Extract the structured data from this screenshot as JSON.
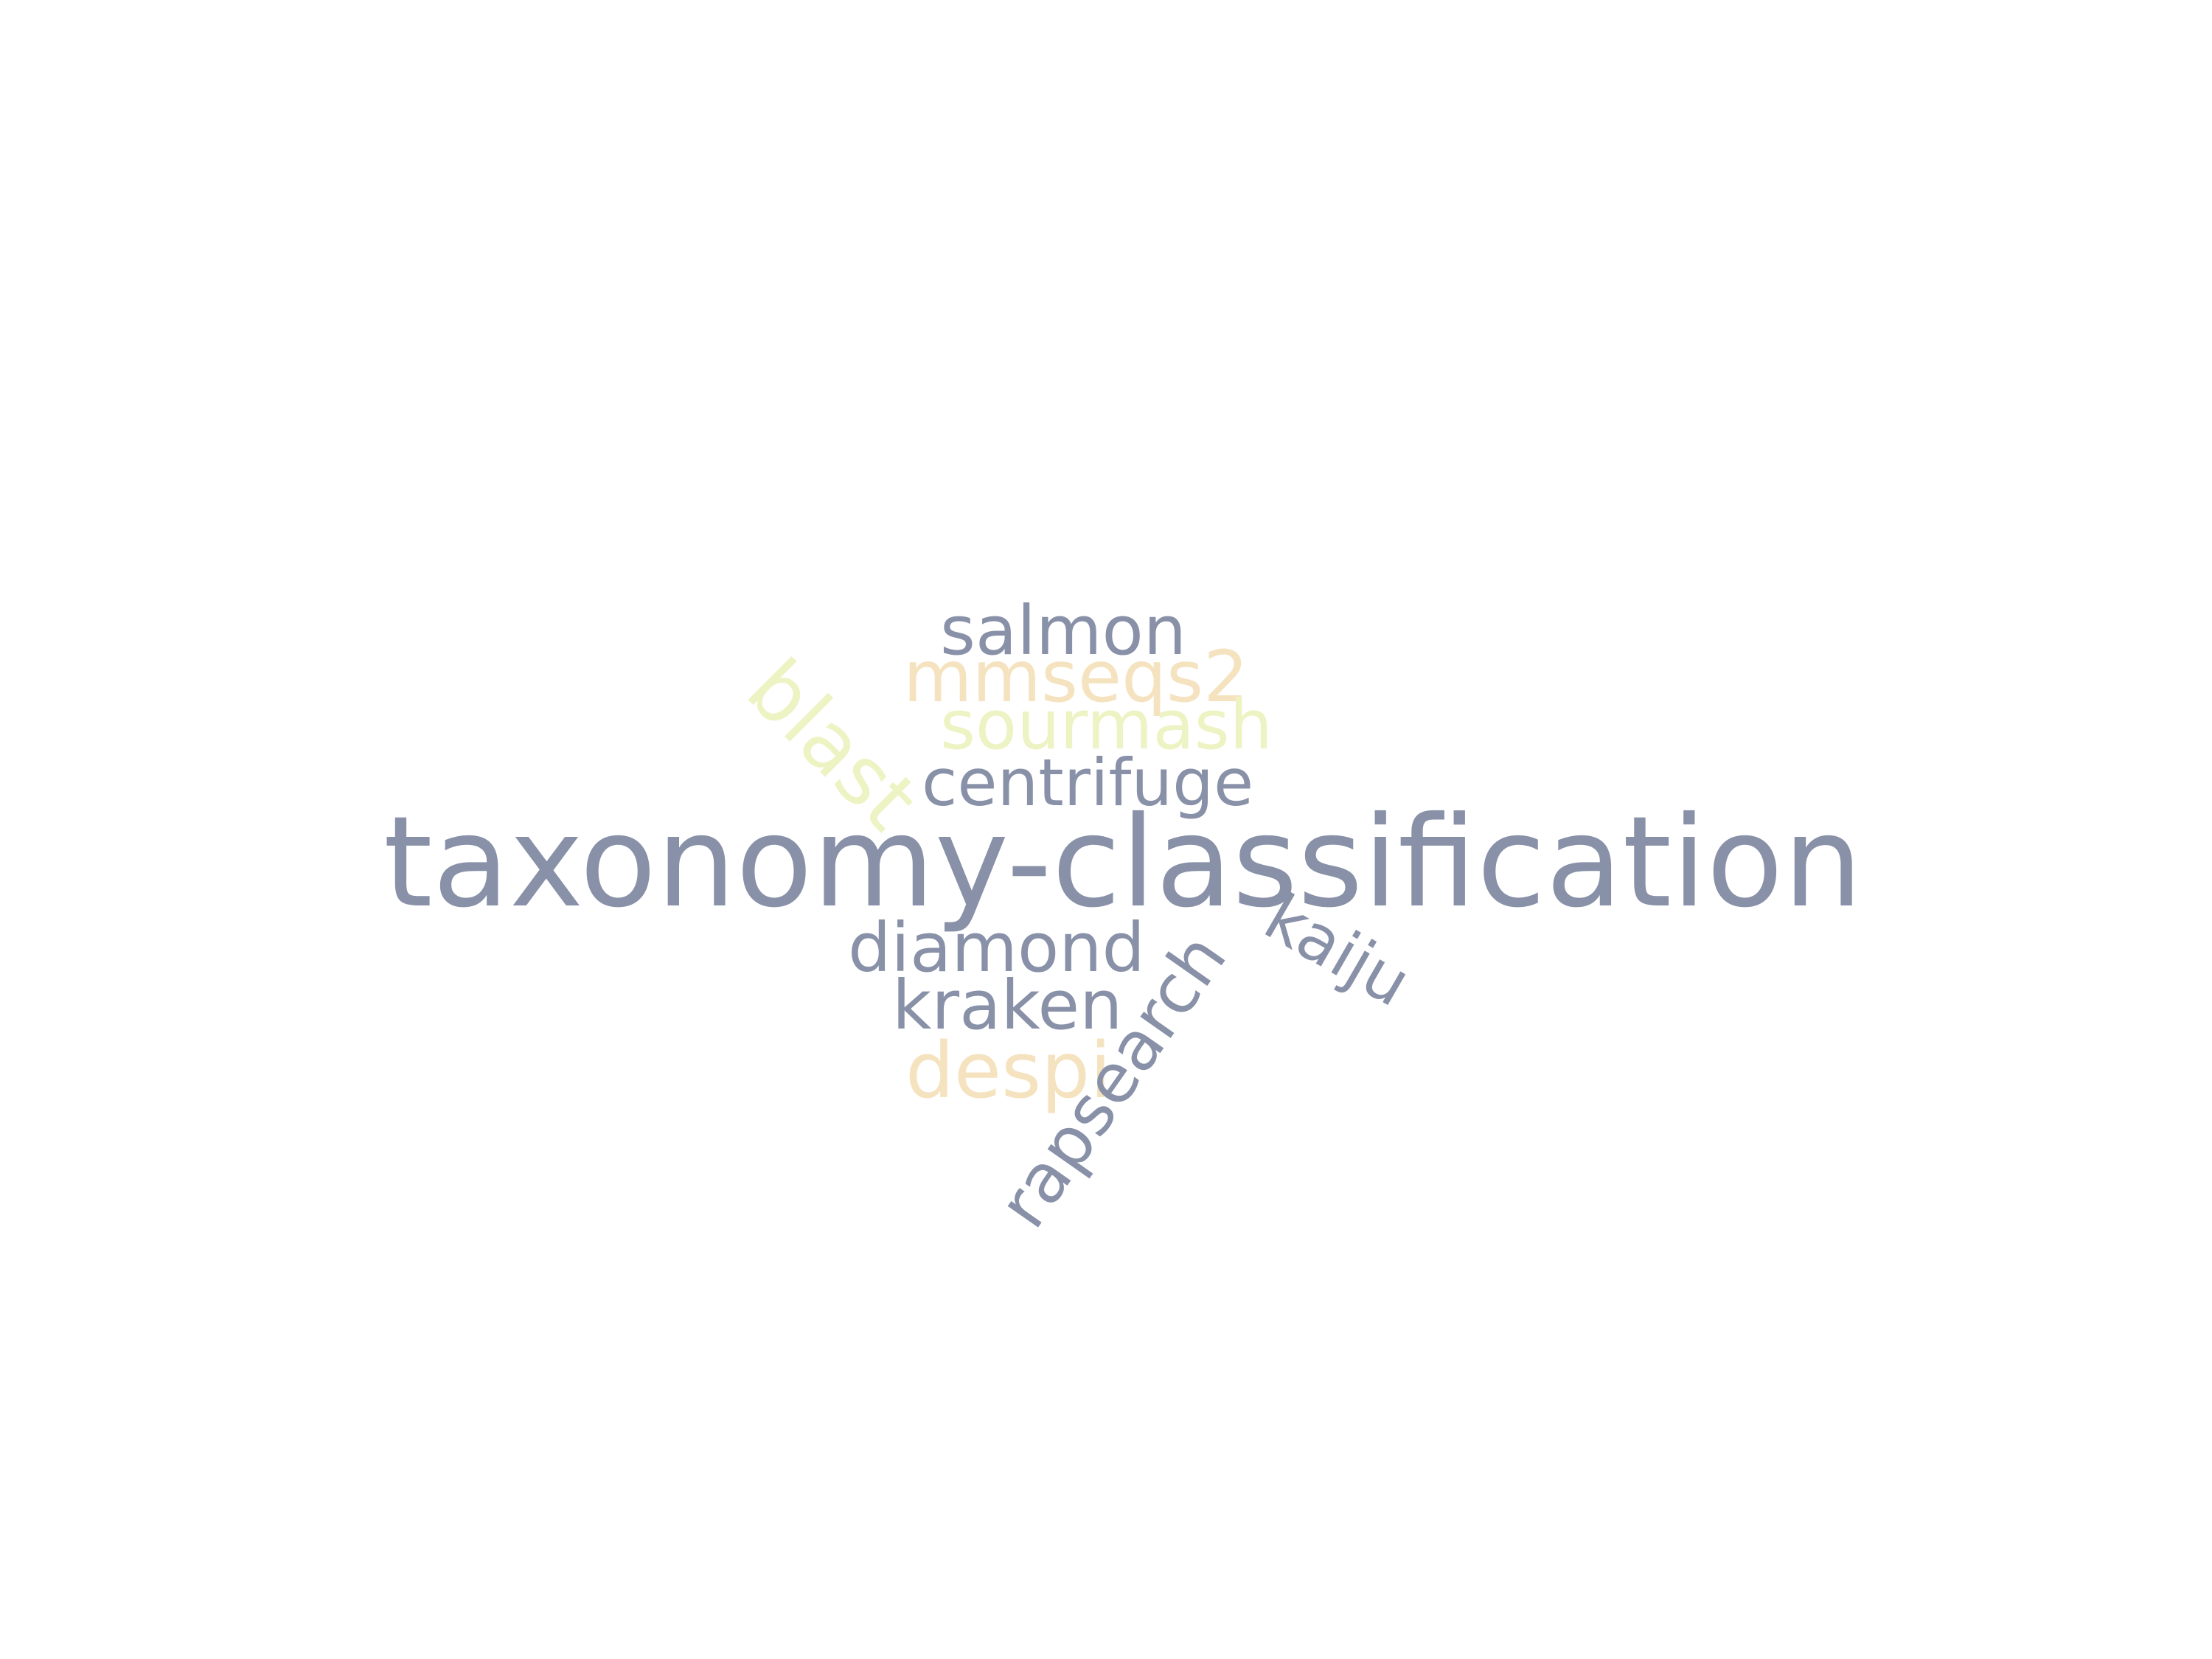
{
  "colors": {
    "slate": "#8891a8",
    "peach": "#f5e3c0",
    "pale_yellow": "#eef3c4"
  },
  "words": {
    "salmon": {
      "text": "salmon",
      "color": "#8891a8"
    },
    "mmseqs2": {
      "text": "mmseqs2",
      "color": "#f5e3c0"
    },
    "sourmash": {
      "text": "sourmash",
      "color": "#eef3c4"
    },
    "blast": {
      "text": "blast",
      "color": "#eef3c4"
    },
    "centrifuge": {
      "text": "centrifuge",
      "color": "#8891a8"
    },
    "taxonomy": {
      "text": "taxonomy-classification",
      "color": "#8891a8"
    },
    "diamond": {
      "text": "diamond",
      "color": "#8891a8"
    },
    "kaiju": {
      "text": "kaiju",
      "color": "#8891a8"
    },
    "kraken": {
      "text": "kraken",
      "color": "#8891a8"
    },
    "despi": {
      "text": "despi",
      "color": "#f5e3c0"
    },
    "rapsearch": {
      "text": "rapsearch",
      "color": "#8891a8"
    }
  }
}
